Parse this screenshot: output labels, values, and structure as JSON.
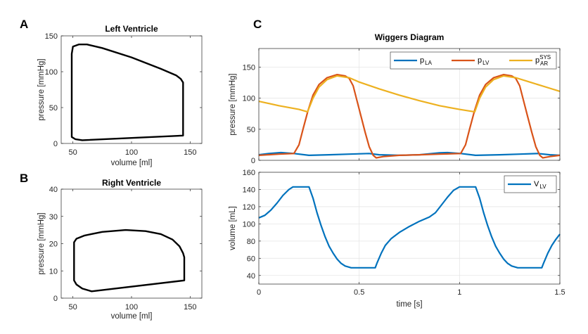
{
  "panels": {
    "a": "A",
    "b": "B",
    "c": "C"
  },
  "colors": {
    "p_LA": "#0072BD",
    "p_LV": "#D95319",
    "p_AR": "#EDB120",
    "V_LV": "#0072BD",
    "loop": "#000000"
  },
  "chart_data": [
    {
      "type": "line",
      "title": "Left Ventricle",
      "xlabel": "volume [ml]",
      "ylabel": "pressure [mmHg]",
      "xlim": [
        40,
        160
      ],
      "ylim": [
        0,
        150
      ],
      "xticks": [
        50,
        100,
        150
      ],
      "yticks": [
        0,
        50,
        100,
        150
      ],
      "grid": false,
      "series": [
        {
          "closed": true,
          "x": [
            49,
            50,
            55,
            62,
            75,
            100,
            125,
            138,
            142,
            144,
            144,
            144,
            58,
            52,
            49,
            49
          ],
          "y": [
            125,
            135,
            138,
            138,
            133,
            120,
            104,
            95,
            90,
            85,
            50,
            11,
            4.5,
            6,
            9,
            60
          ]
        }
      ]
    },
    {
      "type": "line",
      "title": "Right Ventricle",
      "xlabel": "volume [ml]",
      "ylabel": "pressure [mmHg]",
      "xlim": [
        40,
        160
      ],
      "ylim": [
        0,
        40
      ],
      "xticks": [
        50,
        100,
        150
      ],
      "yticks": [
        0,
        10,
        20,
        30,
        40
      ],
      "grid": false,
      "series": [
        {
          "closed": true,
          "x": [
            51,
            53,
            60,
            75,
            95,
            112,
            125,
            135,
            141,
            144,
            145,
            145,
            66,
            58,
            53,
            51,
            51
          ],
          "y": [
            20.5,
            21.8,
            23,
            24.3,
            25,
            24.6,
            23.5,
            21.5,
            19,
            16.5,
            15,
            6.5,
            2.5,
            3.5,
            5,
            6.5,
            14
          ]
        }
      ]
    },
    {
      "type": "line",
      "title": "Wiggers Diagram",
      "xlabel": "",
      "ylabel": "pressure [mmHg]",
      "xlim": [
        0,
        1.5
      ],
      "ylim": [
        0,
        180
      ],
      "xticks": [
        0,
        0.5,
        1,
        1.5
      ],
      "yticks": [
        0,
        50,
        100,
        150
      ],
      "show_xticklabels": false,
      "grid": true,
      "legend": "top-right",
      "series": [
        {
          "name": "p",
          "sub": "LA",
          "sup": "",
          "color_key": "p_LA",
          "x": [
            0,
            0.05,
            0.11,
            0.175,
            0.25,
            0.35,
            0.45,
            0.55,
            0.6,
            0.7,
            0.8,
            0.9,
            0.94,
            1.006,
            1.08,
            1.2,
            1.3,
            1.39,
            1.45,
            1.5
          ],
          "y": [
            9,
            11,
            12.5,
            11,
            8,
            9,
            10,
            11,
            9,
            8,
            9,
            12,
            12.5,
            11,
            8,
            9,
            10,
            11,
            9,
            8
          ]
        },
        {
          "name": "p",
          "sub": "LV",
          "sup": "",
          "color_key": "p_LV",
          "x": [
            0,
            0.1,
            0.175,
            0.2,
            0.22,
            0.245,
            0.27,
            0.3,
            0.34,
            0.39,
            0.43,
            0.45,
            0.47,
            0.49,
            0.51,
            0.53,
            0.55,
            0.57,
            0.585,
            0.62,
            0.7,
            0.8,
            0.9,
            1.006,
            1.03,
            1.05,
            1.075,
            1.1,
            1.13,
            1.17,
            1.22,
            1.26,
            1.28,
            1.3,
            1.32,
            1.34,
            1.36,
            1.38,
            1.4,
            1.415,
            1.45,
            1.5
          ],
          "y": [
            8,
            10,
            11,
            25,
            50,
            80,
            105,
            122,
            133,
            138,
            136,
            132,
            120,
            95,
            70,
            45,
            22,
            8,
            4,
            6,
            8,
            9,
            10,
            11,
            25,
            50,
            80,
            105,
            122,
            133,
            138,
            136,
            132,
            120,
            95,
            70,
            45,
            22,
            8,
            4,
            6,
            8
          ]
        },
        {
          "name": "p",
          "sub": "AR",
          "sup": "SYS",
          "color_key": "p_AR",
          "x": [
            0,
            0.1,
            0.2,
            0.243,
            0.27,
            0.3,
            0.34,
            0.39,
            0.45,
            0.5,
            0.6,
            0.7,
            0.8,
            0.9,
            1.0,
            1.076,
            1.1,
            1.13,
            1.17,
            1.22,
            1.28,
            1.35,
            1.45,
            1.5
          ],
          "y": [
            95,
            88,
            82,
            78,
            100,
            118,
            130,
            136,
            133,
            126,
            115,
            105,
            96,
            88,
            82,
            78,
            100,
            118,
            130,
            136,
            133,
            126,
            116,
            111
          ]
        }
      ]
    },
    {
      "type": "line",
      "title": "",
      "xlabel": "time [s]",
      "ylabel": "volume [mL]",
      "xlim": [
        0,
        1.5
      ],
      "ylim": [
        30,
        160
      ],
      "xticks": [
        0,
        0.5,
        1,
        1.5
      ],
      "yticks": [
        40,
        60,
        80,
        100,
        120,
        140,
        160
      ],
      "xticklabels": [
        "0",
        "0.5",
        "1",
        "1.5"
      ],
      "grid": true,
      "legend": "top-right",
      "series": [
        {
          "name": "V",
          "sub": "LV",
          "sup": "",
          "color_key": "V_LV",
          "x": [
            0,
            0.03,
            0.06,
            0.09,
            0.12,
            0.15,
            0.17,
            0.25,
            0.27,
            0.29,
            0.31,
            0.33,
            0.35,
            0.37,
            0.39,
            0.41,
            0.43,
            0.46,
            0.58,
            0.59,
            0.61,
            0.63,
            0.66,
            0.7,
            0.75,
            0.8,
            0.85,
            0.88,
            0.91,
            0.94,
            0.97,
            1.0,
            1.08,
            1.1,
            1.12,
            1.14,
            1.16,
            1.18,
            1.2,
            1.22,
            1.24,
            1.26,
            1.29,
            1.41,
            1.42,
            1.44,
            1.46,
            1.48,
            1.5
          ],
          "y": [
            107,
            110,
            116,
            124,
            133,
            140,
            143,
            143,
            130,
            113,
            98,
            85,
            74,
            66,
            59,
            54,
            51,
            49,
            49,
            55,
            66,
            75,
            83,
            90,
            97,
            103,
            108,
            113,
            122,
            131,
            139,
            143,
            143,
            130,
            113,
            98,
            85,
            74,
            66,
            59,
            54,
            51,
            49,
            49,
            55,
            66,
            75,
            82,
            88
          ]
        }
      ]
    }
  ]
}
